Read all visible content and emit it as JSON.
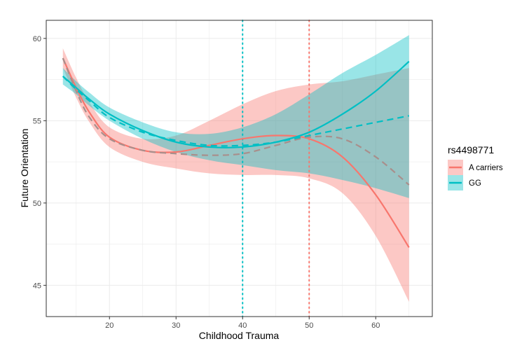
{
  "chart_data": {
    "type": "line",
    "xlabel": "Childhood Trauma",
    "ylabel": "Future Orientation",
    "xlim": [
      10.5,
      68.5
    ],
    "ylim": [
      43.1,
      61.1
    ],
    "xticks": [
      20,
      30,
      40,
      50,
      60
    ],
    "yticks": [
      45,
      50,
      55,
      60
    ],
    "grid": true,
    "legend": {
      "title": "rs4498771",
      "position": "right",
      "entries": [
        "A carriers",
        "GG"
      ]
    },
    "colors": {
      "A carriers": "#F8766D",
      "GG": "#00BFC4",
      "dashed_overlap": "#a88f8c"
    },
    "vlines": [
      {
        "x": 40,
        "color": "#00BFC4",
        "style": "dotted"
      },
      {
        "x": 50,
        "color": "#F8766D",
        "style": "dotted"
      }
    ],
    "x": [
      13,
      15,
      17,
      20,
      25,
      30,
      35,
      40,
      45,
      50,
      55,
      60,
      65
    ],
    "series": [
      {
        "name": "A carriers",
        "style": "solid",
        "values": [
          58.8,
          57.0,
          55.5,
          54.0,
          53.2,
          53.1,
          53.5,
          53.9,
          54.1,
          53.9,
          52.8,
          50.5,
          47.3
        ],
        "ci_low": [
          58.2,
          56.4,
          54.9,
          53.4,
          52.5,
          52.1,
          51.8,
          51.7,
          51.7,
          51.5,
          50.6,
          48.0,
          44.0
        ],
        "ci_high": [
          59.4,
          57.6,
          56.1,
          54.6,
          53.9,
          54.1,
          55.0,
          56.0,
          56.8,
          57.2,
          57.4,
          57.8,
          58.2
        ]
      },
      {
        "name": "GG",
        "style": "solid",
        "values": [
          57.7,
          57.0,
          56.3,
          55.4,
          54.4,
          53.7,
          53.4,
          53.4,
          53.7,
          54.3,
          55.4,
          56.8,
          58.6
        ],
        "ci_low": [
          57.2,
          56.6,
          55.9,
          55.0,
          53.9,
          53.1,
          52.6,
          52.3,
          52.0,
          51.8,
          51.4,
          50.9,
          50.3
        ],
        "ci_high": [
          58.2,
          57.4,
          56.7,
          55.8,
          54.9,
          54.3,
          54.2,
          54.6,
          55.4,
          56.6,
          57.9,
          59.0,
          60.2
        ]
      },
      {
        "name": "A carriers (dashed)",
        "style": "dashed",
        "values": [
          58.8,
          56.8,
          55.2,
          53.9,
          53.2,
          53.0,
          52.9,
          53.0,
          53.5,
          54.0,
          53.9,
          52.8,
          51.1
        ]
      },
      {
        "name": "GG (dashed)",
        "style": "dashed",
        "values": [
          57.7,
          56.9,
          56.2,
          55.2,
          54.3,
          53.8,
          53.5,
          53.5,
          53.7,
          54.1,
          54.5,
          54.9,
          55.3
        ]
      }
    ]
  }
}
